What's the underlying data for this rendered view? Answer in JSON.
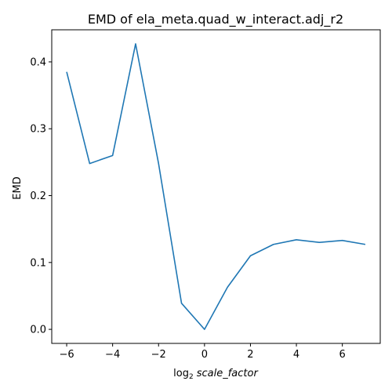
{
  "chart_data": {
    "type": "line",
    "title": "EMD of ela_meta.quad_w_interact.adj_r2",
    "xlabel_prefix": "log",
    "xlabel_subscript": "2",
    "xlabel_var": "scale_factor",
    "ylabel": "EMD",
    "xlim": [
      -6.65,
      7.65
    ],
    "ylim": [
      -0.021,
      0.448
    ],
    "xticks": [
      -6,
      -4,
      -2,
      0,
      2,
      4,
      6
    ],
    "xtick_labels": [
      "−6",
      "−4",
      "−2",
      "0",
      "2",
      "4",
      "6"
    ],
    "yticks": [
      0.0,
      0.1,
      0.2,
      0.3,
      0.4
    ],
    "ytick_labels": [
      "0.0",
      "0.1",
      "0.2",
      "0.3",
      "0.4"
    ],
    "grid": false,
    "series": [
      {
        "color": "#1f77b4",
        "x": [
          -6,
          -5,
          -4,
          -3,
          -2,
          -1,
          0,
          1,
          2,
          3,
          4,
          5,
          6,
          7
        ],
        "y": [
          0.385,
          0.248,
          0.26,
          0.427,
          0.248,
          0.039,
          0.0,
          0.063,
          0.11,
          0.127,
          0.134,
          0.13,
          0.133,
          0.127
        ]
      }
    ]
  }
}
